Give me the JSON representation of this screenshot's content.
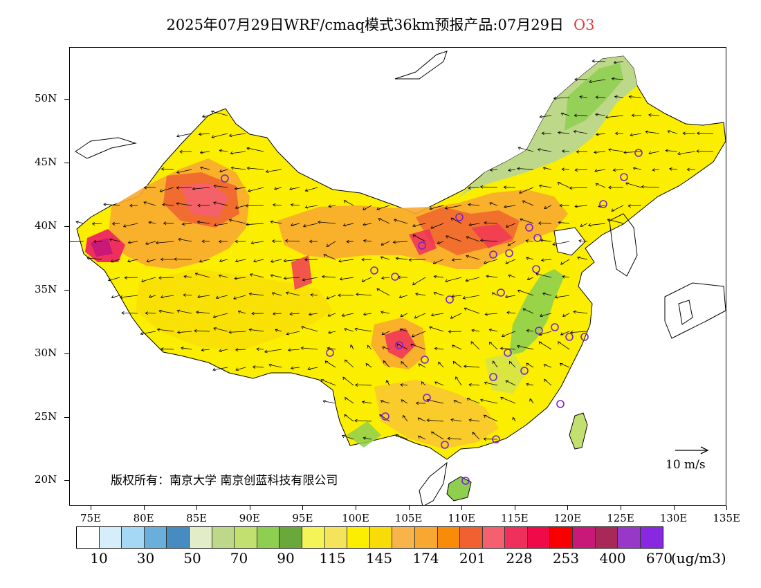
{
  "title": {
    "main": "2025年07月29日WRF/cmaq模式36km预报产品:07月29日",
    "species": "O3"
  },
  "axes": {
    "lat_labels": [
      "50N",
      "45N",
      "40N",
      "35N",
      "30N",
      "25N",
      "20N"
    ],
    "lon_labels": [
      "75E",
      "80E",
      "85E",
      "90E",
      "95E",
      "100E",
      "105E",
      "110E",
      "115E",
      "120E",
      "125E",
      "130E",
      "135E"
    ]
  },
  "copyright": "版权所有：南京大学  南京创蓝科技有限公司",
  "wind_reference": "10 m/s",
  "legend": {
    "colors": [
      "#ffffff",
      "#d6eefa",
      "#a4d8f4",
      "#6aaedc",
      "#468cc0",
      "#e2ecc6",
      "#bcd888",
      "#c2e070",
      "#8ecf50",
      "#6aa83a",
      "#f4f458",
      "#f4e45c",
      "#fbee00",
      "#f8dc08",
      "#f8b448",
      "#f8a830",
      "#f88c08",
      "#f06030",
      "#f46070",
      "#f0305c",
      "#f00a48",
      "#f80000",
      "#c81878",
      "#a82858",
      "#9838c8",
      "#8828e0"
    ],
    "labels": [
      "10",
      "30",
      "50",
      "70",
      "90",
      "115",
      "145",
      "174",
      "201",
      "228",
      "253",
      "400",
      "670"
    ],
    "unit": "(ug/m3)"
  },
  "stations_note": "",
  "palette": {
    "low_green": "#bcd888",
    "mid_green": "#8ecf50",
    "yellow": "#fbee00",
    "gold": "#f8dc08",
    "orange": "#f8a830",
    "red": "#f46070",
    "magenta": "#c81878",
    "station": "#7a1fd0"
  }
}
